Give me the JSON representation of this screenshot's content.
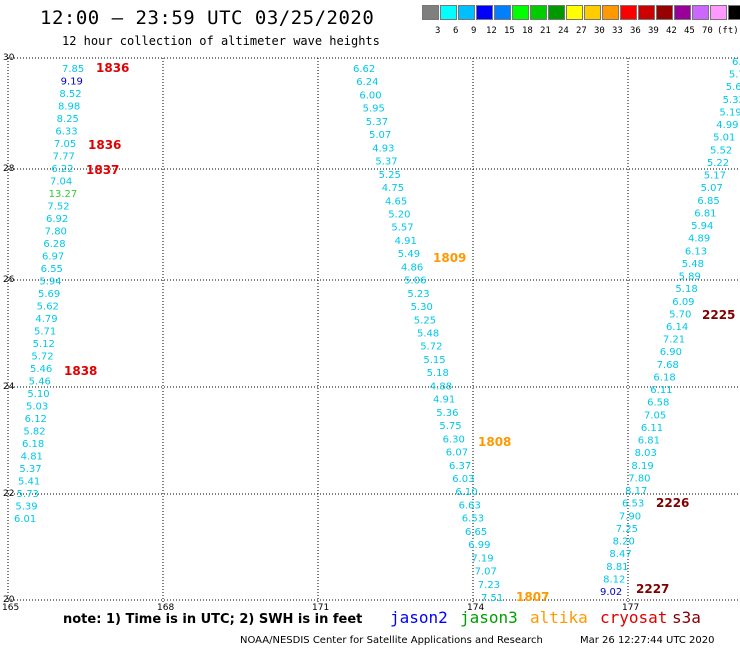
{
  "header": {
    "title": "12:00 – 23:59 UTC 03/25/2020",
    "subtitle": "12 hour collection of altimeter wave heights"
  },
  "legend": {
    "colors": [
      "#7f7f7f",
      "#00ffff",
      "#00bfff",
      "#0000ff",
      "#0080ff",
      "#00ff00",
      "#00cc00",
      "#009900",
      "#ffff00",
      "#ffcc00",
      "#ff9900",
      "#ff0000",
      "#cc0000",
      "#990000",
      "#990099",
      "#cc66ff",
      "#ff99ff",
      "#000000"
    ],
    "labels": [
      "3",
      "6",
      "9",
      "12",
      "15",
      "18",
      "21",
      "24",
      "27",
      "30",
      "33",
      "36",
      "39",
      "42",
      "45",
      "70",
      "(ft)"
    ]
  },
  "axes": {
    "lat_labels": [
      "30",
      "28",
      "26",
      "24",
      "22",
      "20"
    ],
    "lon_labels": [
      "165",
      "168",
      "171",
      "174",
      "177"
    ]
  },
  "tracks": [
    {
      "color": "#00c8e8",
      "points": [
        "7.85",
        "9.19",
        "8.52",
        "8.98",
        "8.25",
        "6.33",
        "7.05",
        "7.77",
        "6.22",
        "7.04",
        "13.27",
        "7.52",
        "6.92",
        "7.80",
        "6.28",
        "6.97",
        "6.55",
        "5.94",
        "5.69",
        "5.62",
        "4.79",
        "5.71",
        "5.12",
        "5.72",
        "5.46",
        "5.46",
        "5.10",
        "5.03",
        "6.12",
        "5.82",
        "6.18",
        "4.81",
        "5.37",
        "5.41",
        "5.73",
        "5.39",
        "6.01"
      ]
    },
    {
      "color": "#00c8e8",
      "points": [
        "6.62",
        "6.24",
        "6.00",
        "5.95",
        "5.37",
        "5.07",
        "4.93",
        "5.37",
        "5.25",
        "4.75",
        "4.65",
        "5.20",
        "5.57",
        "4.91",
        "5.49",
        "4.86",
        "5.06",
        "5.23",
        "5.30",
        "5.25",
        "5.48",
        "5.72",
        "5.15",
        "5.18",
        "4.88",
        "4.91",
        "5.36",
        "5.75",
        "6.30",
        "6.07",
        "6.37",
        "6.03",
        "6.10",
        "6.63",
        "6.53",
        "6.65",
        "6.99",
        "7.19",
        "7.07",
        "7.23",
        "7.51"
      ]
    },
    {
      "color": "#00c8e8",
      "points": [
        "6.",
        "5.7",
        "5.6",
        "5.32",
        "5.19",
        "4.99",
        "5.01",
        "5.52",
        "5.22",
        "5.17",
        "5.07",
        "6.85",
        "6.81",
        "5.94",
        "4.89",
        "6.13",
        "5.48",
        "5.89",
        "5.18",
        "6.09",
        "5.70",
        "6.14",
        "7.21",
        "6.90",
        "7.68",
        "6.18",
        "6.11",
        "6.58",
        "7.05",
        "6.11",
        "6.81",
        "8.03",
        "8.19",
        "7.80",
        "8.17",
        "6.53",
        "7.90",
        "7.25",
        "8.20",
        "8.47",
        "8.81",
        "8.12",
        "9.02"
      ]
    }
  ],
  "times": [
    {
      "label": "1836",
      "color": "#e00000"
    },
    {
      "label": "1836",
      "color": "#e00000"
    },
    {
      "label": "1837",
      "color": "#e00000"
    },
    {
      "label": "1838",
      "color": "#e00000"
    },
    {
      "label": "1809",
      "color": "#ff9900"
    },
    {
      "label": "1808",
      "color": "#ff9900"
    },
    {
      "label": "1807",
      "color": "#ff9900"
    },
    {
      "label": "2225",
      "color": "#800000"
    },
    {
      "label": "2226",
      "color": "#800000"
    },
    {
      "label": "2227",
      "color": "#800000"
    }
  ],
  "footer": {
    "note": "note: 1) Time is in UTC; 2) SWH is in feet",
    "satellites": [
      {
        "name": "jason2",
        "color": "#0000ff"
      },
      {
        "name": "jason3",
        "color": "#00a000"
      },
      {
        "name": "altika",
        "color": "#ff9900"
      },
      {
        "name": "cryosat",
        "color": "#e00000"
      },
      {
        "name": "s3a",
        "color": "#800000"
      }
    ],
    "credit": "NOAA/NESDIS Center for Satellite Applications and Research",
    "stamp": "Mar 26 12:27:44 UTC 2020"
  }
}
